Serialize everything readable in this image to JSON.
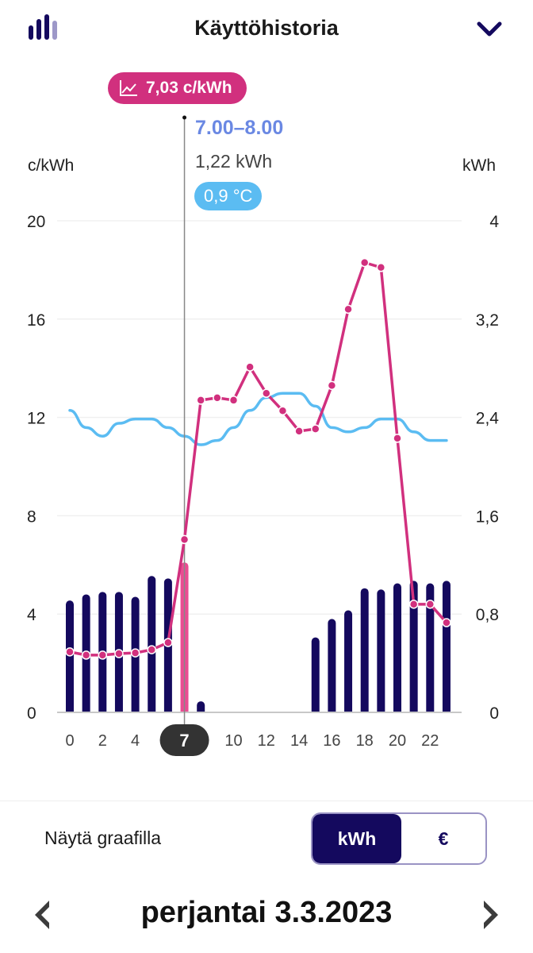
{
  "header": {
    "title": "Käyttöhistoria",
    "logo_icon": "bar-chart-icon",
    "collapse_icon": "chevron-down-icon"
  },
  "tooltip": {
    "price": "7,03 c/kWh",
    "price_icon": "line-chart-icon",
    "time": "7.00–8.00",
    "consumption": "1,22 kWh",
    "temperature": "0,9 °C"
  },
  "colors": {
    "bars": "#14095e",
    "selected_bar": "#ea4c92",
    "price_line": "#d1307e",
    "temperature_line": "#5bbcf2",
    "accent": "#14095e"
  },
  "chart_data": {
    "type": "bar",
    "left_axis_label": "c/kWh",
    "right_axis_label": "kWh",
    "left_ticks": [
      "0",
      "4",
      "8",
      "12",
      "16",
      "20"
    ],
    "left_tick_values": [
      0,
      4,
      8,
      12,
      16,
      20
    ],
    "right_ticks": [
      "0",
      "0,8",
      "1,6",
      "2,4",
      "3,2",
      "4"
    ],
    "right_tick_values": [
      0,
      0.8,
      1.6,
      2.4,
      3.2,
      4
    ],
    "x_ticks": [
      "0",
      "2",
      "4",
      "7",
      "10",
      "12",
      "14",
      "16",
      "18",
      "20",
      "22"
    ],
    "x_tick_values": [
      0,
      2,
      4,
      7,
      10,
      12,
      14,
      16,
      18,
      20,
      22
    ],
    "selected_hour": 7,
    "selected_hour_label": "7",
    "ylim_price": [
      0,
      20
    ],
    "ylim_kwh": [
      0,
      4
    ],
    "hours": [
      0,
      1,
      2,
      3,
      4,
      5,
      6,
      7,
      8,
      9,
      10,
      11,
      12,
      13,
      14,
      15,
      16,
      17,
      18,
      19,
      20,
      21,
      22,
      23
    ],
    "series": [
      {
        "name": "kWh",
        "axis": "right",
        "type": "bar",
        "values": [
          0.91,
          0.96,
          0.98,
          0.98,
          0.94,
          1.11,
          1.09,
          1.22,
          0.09,
          0,
          0,
          0,
          0,
          0,
          0,
          0.61,
          0.76,
          0.83,
          1.01,
          1.0,
          1.05,
          1.07,
          1.05,
          1.07
        ]
      },
      {
        "name": "c/kWh",
        "axis": "left",
        "type": "line",
        "values": [
          2.46,
          2.33,
          2.33,
          2.39,
          2.42,
          2.55,
          2.84,
          7.03,
          12.7,
          12.8,
          12.7,
          14.05,
          12.98,
          12.27,
          11.44,
          11.53,
          13.3,
          16.4,
          18.3,
          18.1,
          11.15,
          4.4,
          4.4,
          3.65
        ]
      },
      {
        "name": "°C",
        "axis": "hidden",
        "type": "line",
        "values": [
          1.5,
          1.1,
          0.9,
          1.2,
          1.3,
          1.3,
          1.1,
          0.9,
          0.7,
          0.8,
          1.1,
          1.5,
          1.8,
          1.9,
          1.9,
          1.6,
          1.1,
          1.0,
          1.1,
          1.3,
          1.3,
          1.0,
          0.8,
          0.8
        ]
      }
    ]
  },
  "controls": {
    "show_on_chart_label": "Näytä graafilla",
    "toggle_options": [
      "kWh",
      "€"
    ],
    "toggle_selected": "kWh"
  },
  "date_nav": {
    "date": "perjantai 3.3.2023",
    "prev_icon": "chevron-left-icon",
    "next_icon": "chevron-right-icon"
  }
}
